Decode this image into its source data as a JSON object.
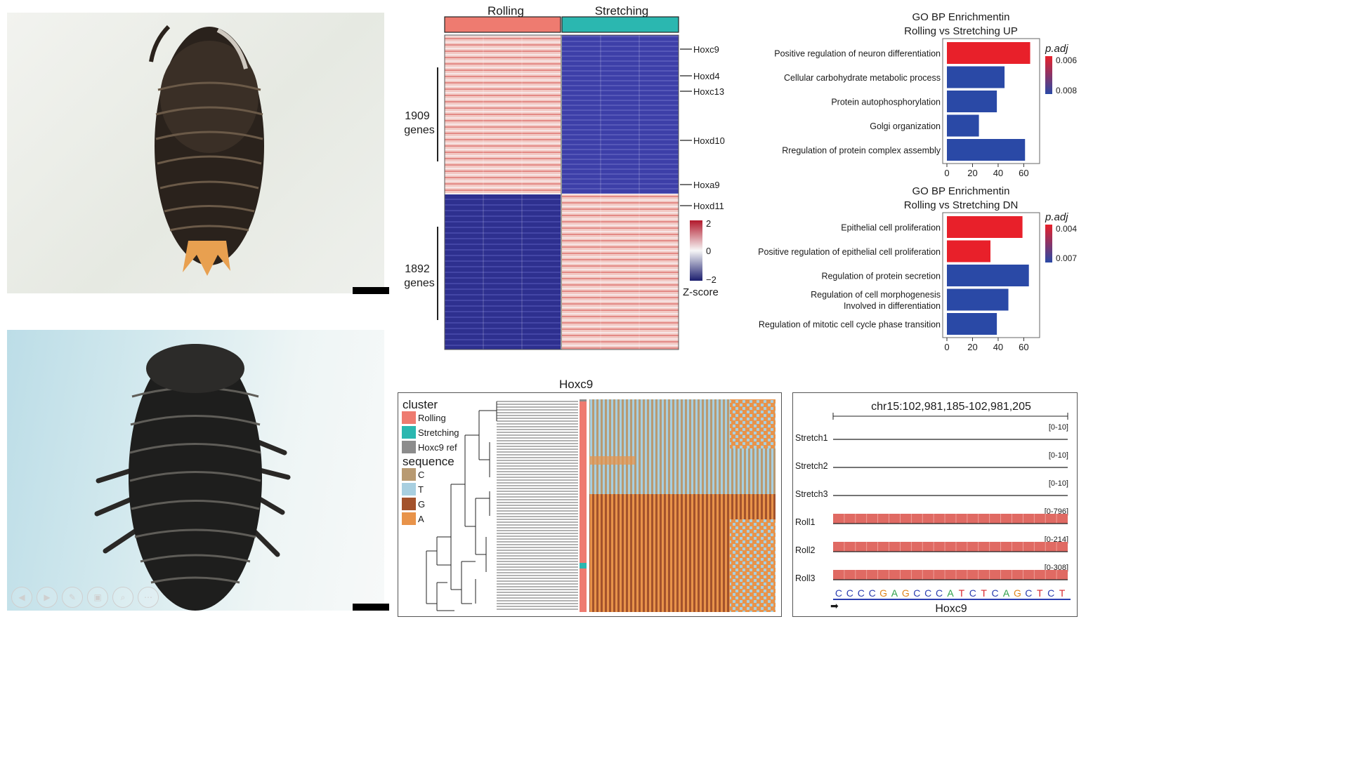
{
  "heatmap": {
    "groups": [
      "Rolling",
      "Stretching"
    ],
    "group_colors": {
      "Rolling": "#ee7b70",
      "Stretching": "#2bb7b0"
    },
    "blocks": [
      {
        "label": "1909",
        "sub": "genes"
      },
      {
        "label": "1892",
        "sub": "genes"
      }
    ],
    "genes": [
      "Hoxc9",
      "Hoxd4",
      "Hoxc13",
      "Hoxd10",
      "Hoxa9",
      "Hoxd11"
    ],
    "colorbar": {
      "title": "Z-score",
      "ticks": [
        "2",
        "0",
        "−2"
      ]
    }
  },
  "go_up": {
    "title_line1": "GO BP Enrichmentin",
    "title_line2": "Rolling vs Stretching UP",
    "legend_title": "p.adj",
    "legend_ticks": [
      "0.006",
      "0.008"
    ],
    "x_ticks": [
      "0",
      "20",
      "40",
      "60"
    ]
  },
  "go_dn": {
    "title_line1": "GO BP Enrichmentin",
    "title_line2": "Rolling vs Stretching DN",
    "legend_title": "p.adj",
    "legend_ticks": [
      "0.004",
      "0.007"
    ],
    "x_ticks": [
      "0",
      "20",
      "40",
      "60"
    ]
  },
  "chart_data": [
    {
      "type": "bar",
      "orientation": "horizontal",
      "title": "GO BP Enrichmentin Rolling vs Stretching UP",
      "categories": [
        "Positive regulation of neuron differentiation",
        "Cellular carbohydrate metabolic process",
        "Protein autophosphorylation",
        "Golgi organization",
        "Rregulation of protein complex assembly"
      ],
      "values": [
        65,
        45,
        39,
        25,
        61
      ],
      "colors": [
        "#e8202a",
        "#2a49a6",
        "#2a49a6",
        "#2a49a6",
        "#2a49a6"
      ],
      "xlim": [
        0,
        68
      ],
      "legend": "p.adj"
    },
    {
      "type": "bar",
      "orientation": "horizontal",
      "title": "GO BP Enrichmentin Rolling vs Stretching DN",
      "categories": [
        "Epithelial cell proliferation",
        "Positive regulation of epithelial cell proliferation",
        "Regulation of protein secretion",
        "Regulation of cell morphogenesis Involved in differentiation",
        "Regulation of mitotic cell cycle phase transition"
      ],
      "values": [
        59,
        34,
        64,
        48,
        39
      ],
      "colors": [
        "#e8202a",
        "#e8202a",
        "#2a49a6",
        "#2a49a6",
        "#2a49a6"
      ],
      "xlim": [
        0,
        68
      ],
      "legend": "p.adj"
    }
  ],
  "tree_panel": {
    "title": "Hoxc9",
    "legend_cluster": "cluster",
    "clusters": [
      {
        "label": "Rolling",
        "color": "#ee7b70"
      },
      {
        "label": "Stretching",
        "color": "#2bb7b0"
      },
      {
        "label": "Hoxc9 ref",
        "color": "#8c8c8c"
      }
    ],
    "legend_sequence": "sequence",
    "bases": [
      {
        "label": "C",
        "color": "#b89a72"
      },
      {
        "label": "T",
        "color": "#a8cfe0"
      },
      {
        "label": "G",
        "color": "#a3522c"
      },
      {
        "label": "A",
        "color": "#e8934a"
      }
    ]
  },
  "tracks": {
    "region": "chr15:102,981,185-102,981,205",
    "rows": [
      {
        "name": "Stretch1",
        "range": "[0-10]",
        "signal": 0
      },
      {
        "name": "Stretch2",
        "range": "[0-10]",
        "signal": 0
      },
      {
        "name": "Stretch3",
        "range": "[0-10]",
        "signal": 0
      },
      {
        "name": "Roll1",
        "range": "[0-796]",
        "signal": 1
      },
      {
        "name": "Roll2",
        "range": "[0-214]",
        "signal": 1
      },
      {
        "name": "Roll3",
        "range": "[0-308]",
        "signal": 1
      }
    ],
    "sequence": "CCCCGAGCCCATCTCAGCTCT",
    "base_colors": {
      "C": "#2a3db0",
      "G": "#e0851e",
      "A": "#2ea04a",
      "T": "#d8262c"
    },
    "gene": "Hoxc9"
  },
  "controls": [
    "◀",
    "▶",
    "✎",
    "▣",
    "⌕",
    "⋯"
  ]
}
